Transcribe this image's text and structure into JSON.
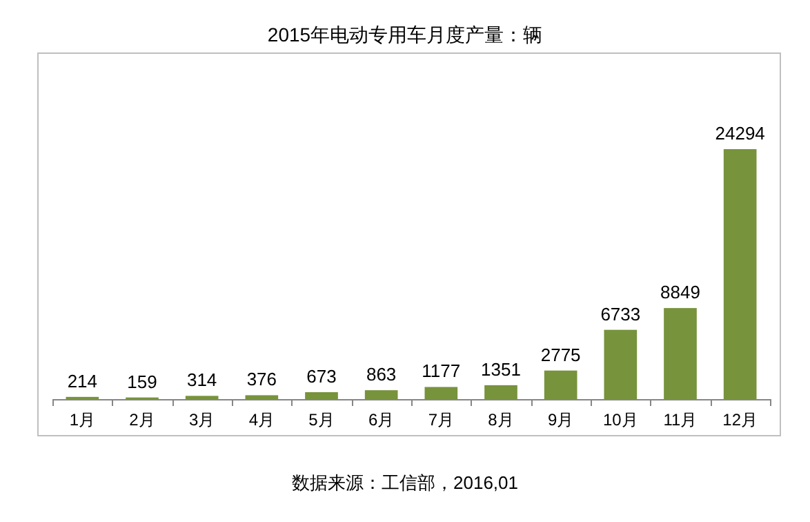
{
  "chart_data": {
    "type": "bar",
    "title": "2015年电动专用车月度产量：辆",
    "categories": [
      "1月",
      "2月",
      "3月",
      "4月",
      "5月",
      "6月",
      "7月",
      "8月",
      "9月",
      "10月",
      "11月",
      "12月"
    ],
    "values": [
      214,
      159,
      314,
      376,
      673,
      863,
      1177,
      1351,
      2775,
      6733,
      8849,
      24294
    ],
    "color": "#77933c",
    "data_labels": true,
    "annotations": [
      "数据来源：工信部，2016,01"
    ]
  }
}
